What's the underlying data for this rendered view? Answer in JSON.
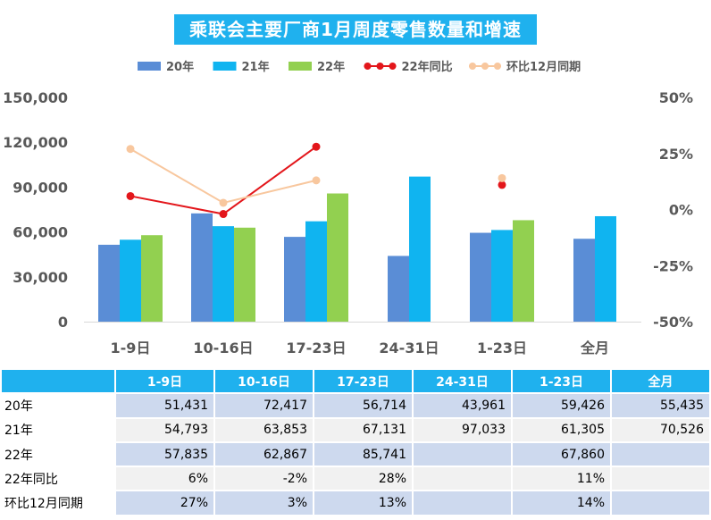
{
  "chart_data": {
    "type": "bar",
    "title": "乘联会主要厂商1月周度零售数量和增速",
    "categories": [
      "1-9日",
      "10-16日",
      "17-23日",
      "24-31日",
      "1-23日",
      "全月"
    ],
    "series": [
      {
        "name": "20年",
        "kind": "bar",
        "color": "#5a8dd6",
        "values": [
          51431,
          72417,
          56714,
          43961,
          59426,
          55435
        ]
      },
      {
        "name": "21年",
        "kind": "bar",
        "color": "#10b4f0",
        "values": [
          54793,
          63853,
          67131,
          97033,
          61305,
          70526
        ]
      },
      {
        "name": "22年",
        "kind": "bar",
        "color": "#92d050",
        "values": [
          57835,
          62867,
          85741,
          null,
          67860,
          null
        ]
      },
      {
        "name": "22年同比",
        "kind": "line",
        "axis": "right",
        "color": "#e3161b",
        "values": [
          6,
          -2,
          28,
          null,
          11,
          null
        ]
      },
      {
        "name": "环比12月同期",
        "kind": "line",
        "axis": "right",
        "color": "#f8c79e",
        "values": [
          27,
          3,
          13,
          null,
          14,
          null
        ]
      }
    ],
    "left_axis": {
      "min": 0,
      "max": 150000,
      "ticks": [
        "0",
        "30,000",
        "60,000",
        "90,000",
        "120,000",
        "150,000"
      ]
    },
    "right_axis": {
      "min": -50,
      "max": 50,
      "ticks": [
        "-50%",
        "-25%",
        "0%",
        "25%",
        "50%"
      ]
    },
    "legend_position": "top",
    "grid": false
  },
  "table": {
    "header": [
      "1-9日",
      "10-16日",
      "17-23日",
      "24-31日",
      "1-23日",
      "全月"
    ],
    "rows": [
      {
        "label": "20年",
        "cells": [
          "51,431",
          "72,417",
          "56,714",
          "43,961",
          "59,426",
          "55,435"
        ]
      },
      {
        "label": "21年",
        "cells": [
          "54,793",
          "63,853",
          "67,131",
          "97,033",
          "61,305",
          "70,526"
        ]
      },
      {
        "label": "22年",
        "cells": [
          "57,835",
          "62,867",
          "85,741",
          "",
          "67,860",
          ""
        ]
      },
      {
        "label": "22年同比",
        "cells": [
          "6%",
          "-2%",
          "28%",
          "",
          "11%",
          ""
        ]
      },
      {
        "label": "环比12月同期",
        "cells": [
          "27%",
          "3%",
          "13%",
          "",
          "14%",
          ""
        ]
      }
    ]
  }
}
